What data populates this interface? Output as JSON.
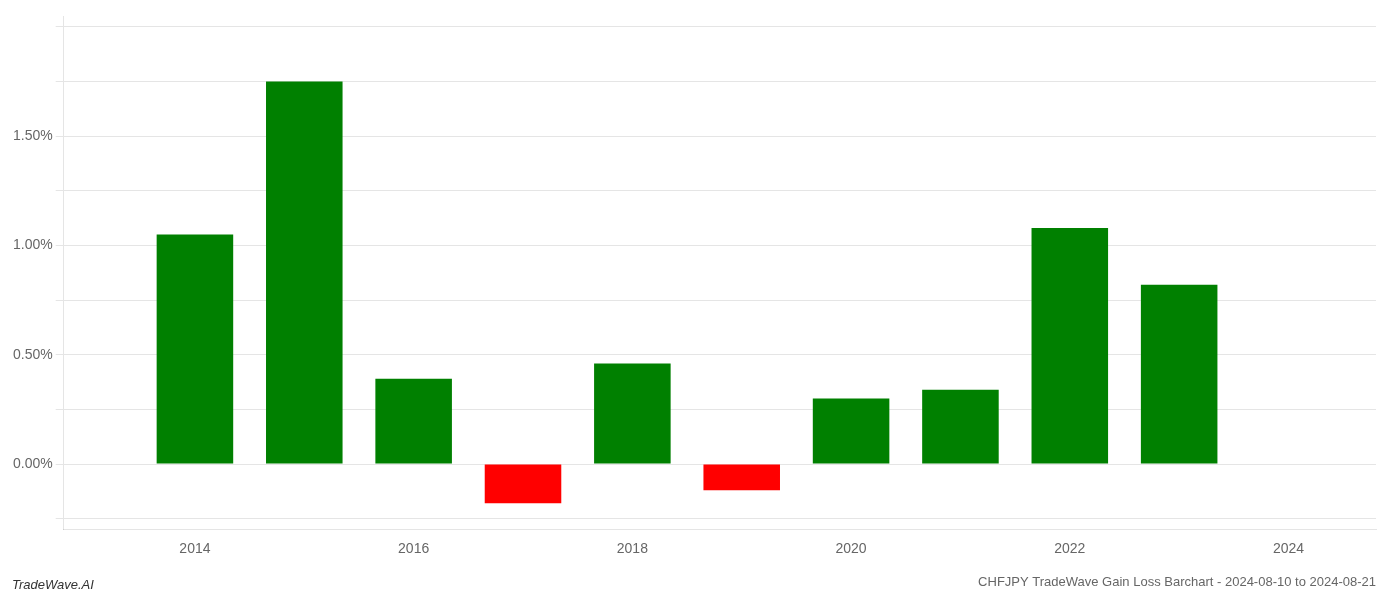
{
  "chart_data": {
    "type": "bar",
    "title": "CHFJPY TradeWave Gain Loss Barchart - 2024-08-10 to 2024-08-21",
    "annotations": [
      "TradeWave.AI"
    ],
    "x": [
      2014,
      2015,
      2016,
      2017,
      2018,
      2019,
      2020,
      2021,
      2022,
      2023
    ],
    "values": [
      1.05,
      1.75,
      0.39,
      -0.18,
      0.46,
      -0.12,
      0.3,
      0.34,
      1.08,
      0.82
    ],
    "colors": [
      "#008000",
      "#008000",
      "#008000",
      "#ff0000",
      "#008000",
      "#ff0000",
      "#008000",
      "#008000",
      "#008000",
      "#008000"
    ],
    "xlim": [
      2012.8,
      2024.8
    ],
    "xticks": [
      2014,
      2016,
      2018,
      2020,
      2022,
      2024
    ],
    "ylim": [
      -0.3,
      2.05
    ],
    "yticks": [
      {
        "value": -0.25,
        "label": null
      },
      {
        "value": 0.0,
        "label": "0.00%"
      },
      {
        "value": 0.25,
        "label": null
      },
      {
        "value": 0.5,
        "label": "0.50%"
      },
      {
        "value": 0.75,
        "label": null
      },
      {
        "value": 1.0,
        "label": "1.00%"
      },
      {
        "value": 1.25,
        "label": null
      },
      {
        "value": 1.5,
        "label": "1.50%"
      },
      {
        "value": 1.75,
        "label": null
      },
      {
        "value": 2.0,
        "label": null
      }
    ],
    "grid": "y"
  }
}
